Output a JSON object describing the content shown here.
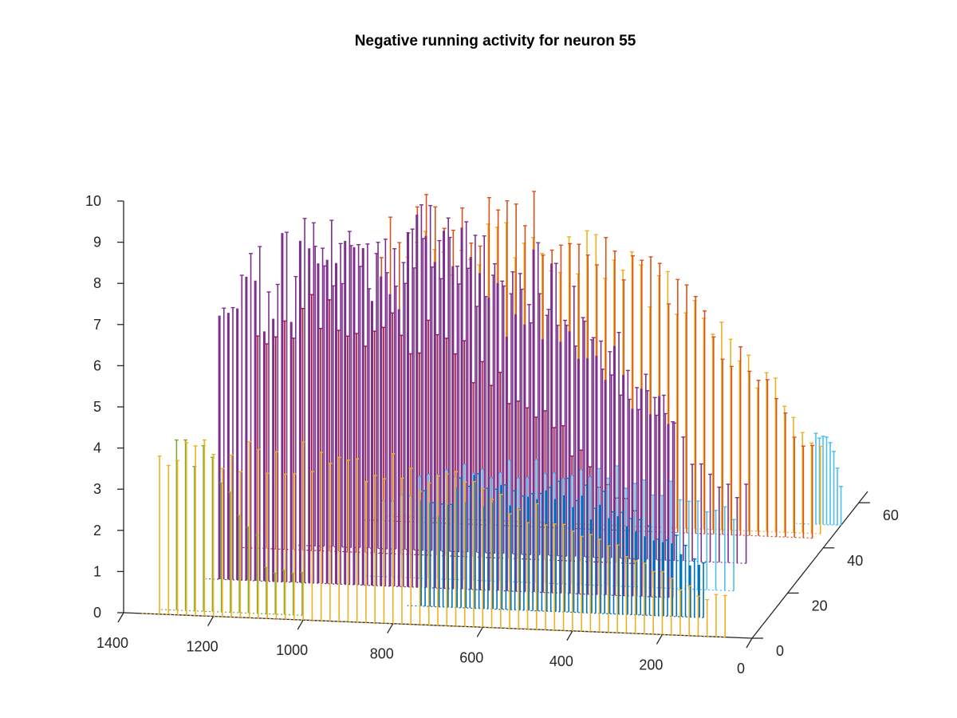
{
  "chart_data": {
    "type": "stem3",
    "title": "Negative running activity for neuron 55",
    "xlabel": "",
    "ylabel": "",
    "zlabel": "",
    "x_ticks": [
      "1400",
      "1200",
      "1000",
      "800",
      "600",
      "400",
      "200",
      "0"
    ],
    "y_ticks": [
      "0",
      "20",
      "40",
      "60"
    ],
    "z_ticks": [
      "0",
      "1",
      "2",
      "3",
      "4",
      "5",
      "6",
      "7",
      "8",
      "9",
      "10"
    ],
    "xlim": [
      0,
      1400
    ],
    "ylim": [
      0,
      65
    ],
    "zlim": [
      0,
      10
    ],
    "grid": false,
    "series": [
      {
        "color": "#77AC30",
        "y": 2,
        "x_range": [
          1010,
          1290
        ],
        "peak": 4.4,
        "peak_at": 1290,
        "spacing": 20,
        "band": false
      },
      {
        "color": "#EDB120",
        "y": 0,
        "x_range": [
          60,
          1320
        ],
        "peak": 4.4,
        "peak_at": 1060,
        "spacing": 20,
        "band": false
      },
      {
        "color": "#0072BD",
        "y": 8,
        "x_range": [
          140,
          760
        ],
        "peak": 3.4,
        "peak_at": 540,
        "spacing": 20,
        "band": true
      },
      {
        "color": "#4DBEEE",
        "y": 20,
        "x_range": [
          120,
          900
        ],
        "peak": 3.1,
        "peak_at": 520,
        "spacing": 20,
        "band": false
      },
      {
        "color": "#7E2F8E",
        "y": 16,
        "x_range": [
          240,
          1240
        ],
        "peak": 9.6,
        "peak_at": 830,
        "spacing": 20,
        "band": true
      },
      {
        "color": "#A2142F",
        "y": 30,
        "x_range": [
          380,
          1220
        ],
        "peak": 6.3,
        "peak_at": 1040,
        "spacing": 20,
        "band": false
      },
      {
        "color": "#7E2F8E",
        "y": 32,
        "x_range": [
          140,
          1100
        ],
        "peak": 7.8,
        "peak_at": 920,
        "spacing": 20,
        "band": false
      },
      {
        "color": "#D95319",
        "y": 44,
        "x_range": [
          40,
          1000
        ],
        "peak": 8.3,
        "peak_at": 740,
        "spacing": 20,
        "band": false
      },
      {
        "color": "#EDB120",
        "y": 46,
        "x_range": [
          30,
          960
        ],
        "peak": 7.6,
        "peak_at": 700,
        "spacing": 20,
        "band": false
      },
      {
        "color": "#4DBEEE",
        "y": 50,
        "x_range": [
          0,
          60
        ],
        "peak": 2.6,
        "peak_at": 40,
        "spacing": 8,
        "band": false
      }
    ]
  }
}
